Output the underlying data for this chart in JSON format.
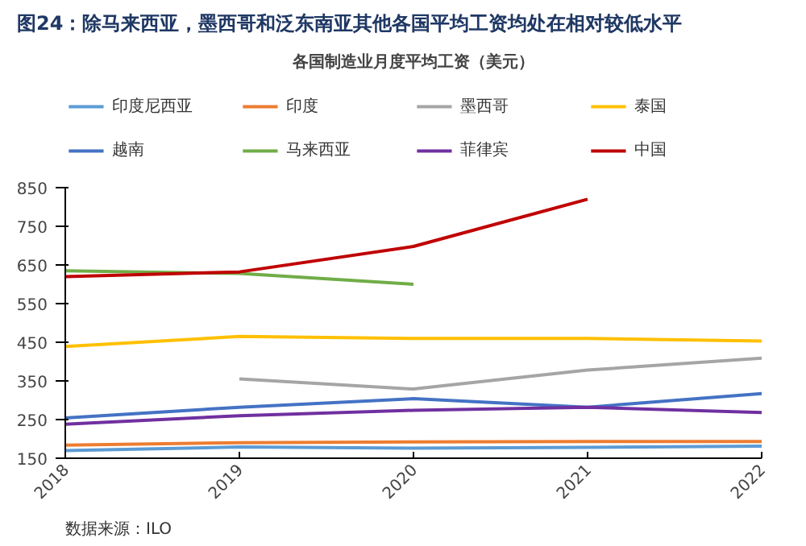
{
  "chart_data": {
    "type": "line",
    "title": "图24：除马来西亚，墨西哥和泛东南亚其他各国平均工资均处在相对较低水平",
    "subtitle": "各国制造业月度平均工资（美元）",
    "x": [
      2018,
      2019,
      2020,
      2021,
      2022
    ],
    "xlim": [
      2018,
      2022
    ],
    "xticks": [
      2018,
      2019,
      2020,
      2021,
      2022
    ],
    "ylim": [
      150,
      850
    ],
    "yticks": [
      150,
      250,
      350,
      450,
      550,
      650,
      750,
      850
    ],
    "grid": false,
    "legend": "top",
    "marker": "none",
    "line_style": "solid",
    "annotations": [
      "数据来源：ILO"
    ],
    "series": [
      {
        "name": "印度尼西亚",
        "color": "#5b9bd5",
        "values": [
          170,
          179,
          176,
          178,
          181
        ]
      },
      {
        "name": "印度",
        "color": "#ed7d31",
        "values": [
          184,
          190,
          192,
          193,
          193
        ]
      },
      {
        "name": "墨西哥",
        "color": "#a5a5a5",
        "values": [
          null,
          355,
          329,
          378,
          409
        ]
      },
      {
        "name": "泰国",
        "color": "#ffc000",
        "values": [
          439,
          465,
          460,
          460,
          453
        ]
      },
      {
        "name": "越南",
        "color": "#4472c4",
        "values": [
          254,
          282,
          304,
          282,
          317
        ]
      },
      {
        "name": "马来西亚",
        "color": "#70ad47",
        "values": [
          635,
          628,
          600,
          null,
          null
        ]
      },
      {
        "name": "菲律宾",
        "color": "#7030a0",
        "values": [
          238,
          260,
          274,
          282,
          268
        ]
      },
      {
        "name": "中国",
        "color": "#c00000",
        "values": [
          620,
          632,
          698,
          820,
          null
        ]
      }
    ]
  }
}
